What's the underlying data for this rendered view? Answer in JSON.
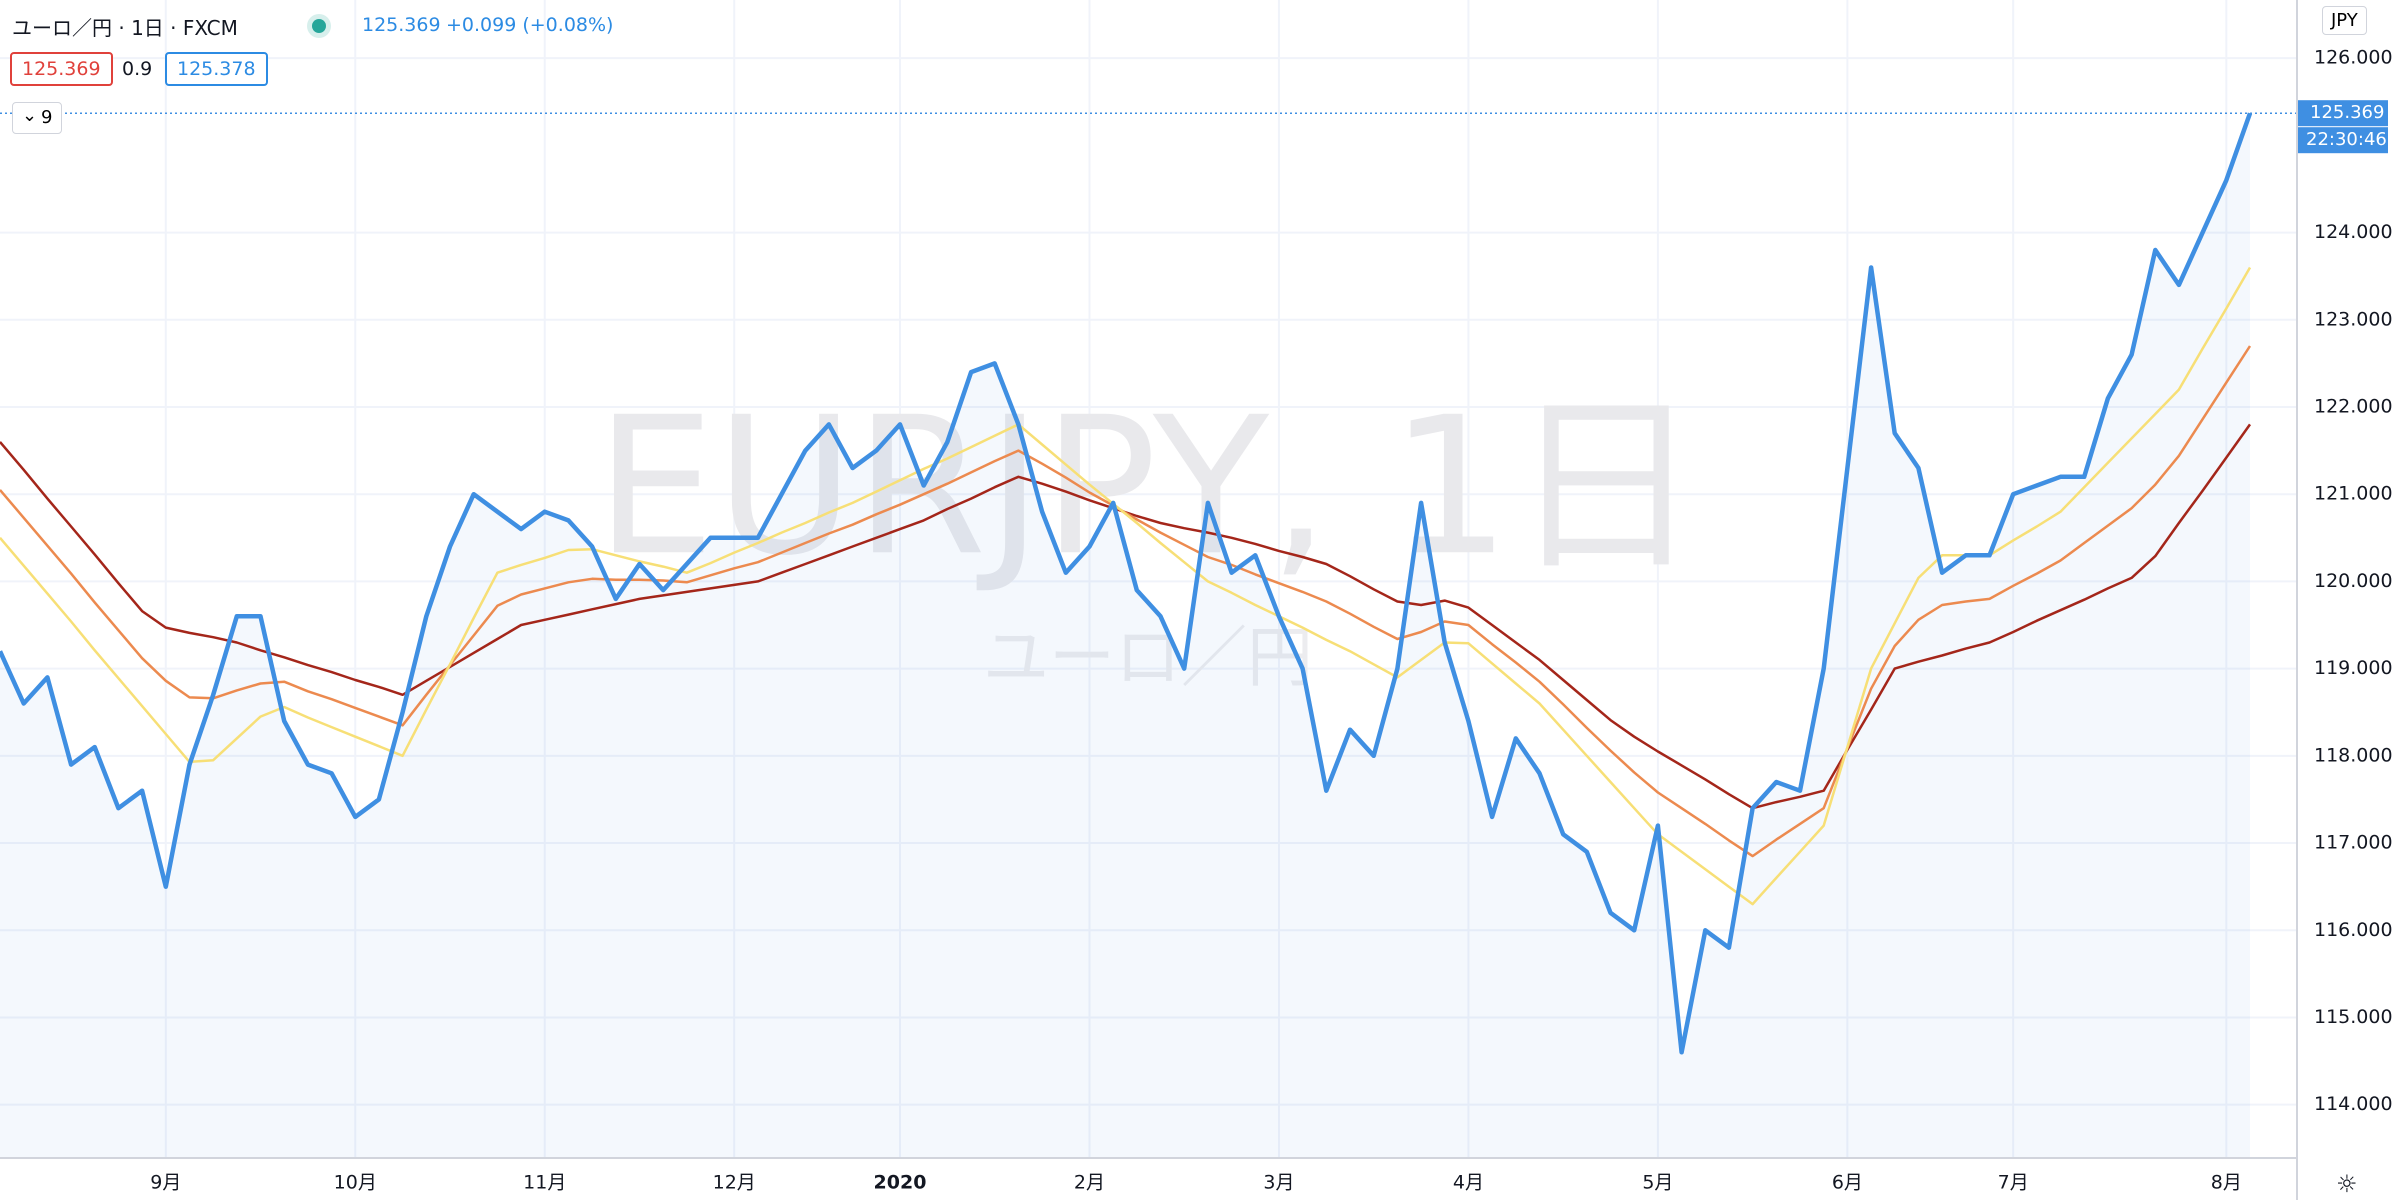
{
  "header": {
    "symbol": "ユーロ／円 · 1日 · FXCM",
    "price": "125.369",
    "change": "+0.099 (+0.08%)",
    "bid": "125.369",
    "spread": "0.9",
    "ask": "125.378",
    "indicator_length": "9"
  },
  "chart_data": {
    "type": "line",
    "watermark": "EURJPY, 1日",
    "watermark_sub": "ユーロ／円",
    "currency": "JPY",
    "countdown": "22:30:46",
    "last_price": 125.369,
    "categories": [
      null,
      null,
      null,
      null,
      null,
      null,
      null,
      "9月",
      null,
      null,
      null,
      null,
      null,
      null,
      null,
      "10月",
      null,
      null,
      null,
      null,
      null,
      null,
      null,
      "11月",
      null,
      null,
      null,
      null,
      null,
      null,
      null,
      "12月",
      null,
      null,
      null,
      null,
      null,
      null,
      "2020",
      null,
      null,
      null,
      null,
      null,
      null,
      null,
      "2月",
      null,
      null,
      null,
      null,
      null,
      null,
      null,
      "3月",
      null,
      null,
      null,
      null,
      null,
      null,
      null,
      "4月",
      null,
      null,
      null,
      null,
      null,
      null,
      null,
      "5月",
      null,
      null,
      null,
      null,
      null,
      null,
      null,
      "6月",
      null,
      null,
      null,
      null,
      null,
      null,
      "7月",
      null,
      null,
      null,
      null,
      null,
      null,
      null,
      null,
      "8月",
      null
    ],
    "ylim": [
      113.4,
      126.667
    ],
    "yticks": [
      {
        "value": 114,
        "label": "114.000"
      },
      {
        "value": 115,
        "label": "115.000"
      },
      {
        "value": 116,
        "label": "116.000"
      },
      {
        "value": 117,
        "label": "117.000"
      },
      {
        "value": 118,
        "label": "118.000"
      },
      {
        "value": 119,
        "label": "119.000"
      },
      {
        "value": 120,
        "label": "120.000"
      },
      {
        "value": 121,
        "label": "121.000"
      },
      {
        "value": 122,
        "label": "122.000"
      },
      {
        "value": 123,
        "label": "123.000"
      },
      {
        "value": 124,
        "label": "124.000"
      },
      {
        "value": 126,
        "label": "126.000"
      }
    ],
    "grid": true,
    "series": [
      {
        "color": "#a4261a",
        "values": [
          121.6,
          121.28,
          120.95,
          120.63,
          120.31,
          119.98,
          119.66,
          119.47,
          119.41,
          119.36,
          119.3,
          119.21,
          119.13,
          119.04,
          118.96,
          118.87,
          118.79,
          118.7,
          118.86,
          119.02,
          119.18,
          119.34,
          119.5,
          119.56,
          119.62,
          119.68,
          119.74,
          119.8,
          119.84,
          119.88,
          119.92,
          119.96,
          120.0,
          120.1,
          120.2,
          120.3,
          120.4,
          120.5,
          120.6,
          120.7,
          120.83,
          120.95,
          121.08,
          121.2,
          121.12,
          121.03,
          120.93,
          120.84,
          120.75,
          120.67,
          120.61,
          120.56,
          120.5,
          120.43,
          120.35,
          120.28,
          120.2,
          120.06,
          119.91,
          119.77,
          119.73,
          119.78,
          119.7,
          119.5,
          119.3,
          119.1,
          118.87,
          118.64,
          118.41,
          118.22,
          118.05,
          117.89,
          117.73,
          117.56,
          117.4,
          117.47,
          117.53,
          117.6,
          118.07,
          118.53,
          119.0,
          119.08,
          119.15,
          119.23,
          119.3,
          119.42,
          119.55,
          119.67,
          119.79,
          119.92,
          120.04,
          120.29,
          120.67,
          121.04,
          121.42,
          121.8
        ]
      },
      {
        "color": "#ec8a4f",
        "values": [
          121.05,
          120.73,
          120.41,
          120.09,
          119.76,
          119.44,
          119.12,
          118.86,
          118.67,
          118.66,
          118.75,
          118.83,
          118.85,
          118.74,
          118.65,
          118.55,
          118.45,
          118.35,
          118.7,
          119.04,
          119.38,
          119.72,
          119.85,
          119.92,
          119.99,
          120.03,
          120.02,
          120.02,
          120.01,
          119.99,
          120.07,
          120.15,
          120.22,
          120.33,
          120.44,
          120.55,
          120.65,
          120.77,
          120.88,
          121.0,
          121.12,
          121.25,
          121.38,
          121.5,
          121.35,
          121.19,
          121.02,
          120.87,
          120.71,
          120.56,
          120.42,
          120.28,
          120.19,
          120.08,
          119.98,
          119.88,
          119.77,
          119.63,
          119.48,
          119.34,
          119.42,
          119.54,
          119.5,
          119.28,
          119.07,
          118.85,
          118.59,
          118.32,
          118.06,
          117.81,
          117.58,
          117.4,
          117.22,
          117.03,
          116.85,
          117.04,
          117.22,
          117.4,
          118.09,
          118.77,
          119.26,
          119.56,
          119.73,
          119.77,
          119.8,
          119.95,
          120.09,
          120.24,
          120.44,
          120.64,
          120.84,
          121.11,
          121.44,
          121.86,
          122.28,
          122.7
        ]
      },
      {
        "color": "#f7df76",
        "values": [
          120.5,
          120.18,
          119.86,
          119.54,
          119.21,
          118.89,
          118.57,
          118.25,
          117.93,
          117.95,
          118.2,
          118.45,
          118.56,
          118.44,
          118.33,
          118.22,
          118.11,
          118.0,
          118.53,
          119.05,
          119.58,
          120.1,
          120.19,
          120.27,
          120.36,
          120.37,
          120.3,
          120.23,
          120.17,
          120.1,
          120.21,
          120.33,
          120.44,
          120.56,
          120.67,
          120.79,
          120.9,
          121.03,
          121.16,
          121.29,
          121.41,
          121.54,
          121.67,
          121.8,
          121.57,
          121.34,
          121.11,
          120.89,
          120.67,
          120.44,
          120.22,
          120.0,
          119.87,
          119.73,
          119.6,
          119.47,
          119.33,
          119.2,
          119.05,
          118.9,
          119.1,
          119.3,
          119.29,
          119.06,
          118.83,
          118.6,
          118.3,
          118.0,
          117.7,
          117.4,
          117.1,
          116.9,
          116.7,
          116.5,
          116.3,
          116.6,
          116.9,
          117.2,
          118.1,
          119.0,
          119.52,
          120.04,
          120.3,
          120.3,
          120.3,
          120.47,
          120.63,
          120.8,
          121.08,
          121.36,
          121.64,
          121.92,
          122.2,
          122.67,
          123.13,
          123.6
        ]
      },
      {
        "color": "#3f8fe2",
        "values": [
          119.2,
          118.6,
          118.9,
          117.9,
          118.1,
          117.4,
          117.6,
          116.5,
          117.9,
          118.7,
          119.6,
          119.6,
          118.4,
          117.9,
          117.8,
          117.3,
          117.5,
          118.5,
          119.6,
          120.4,
          121.0,
          120.8,
          120.6,
          120.8,
          120.7,
          120.4,
          119.8,
          120.2,
          119.9,
          120.2,
          120.5,
          120.5,
          120.5,
          121.0,
          121.5,
          121.8,
          121.3,
          121.5,
          121.8,
          121.1,
          121.6,
          122.4,
          122.5,
          121.8,
          120.8,
          120.1,
          120.4,
          120.9,
          119.9,
          119.6,
          119.0,
          120.9,
          120.1,
          120.3,
          119.6,
          119.0,
          117.6,
          118.3,
          118.0,
          119.0,
          120.9,
          119.3,
          118.4,
          117.3,
          118.2,
          117.8,
          117.1,
          116.9,
          116.2,
          116.0,
          117.2,
          114.6,
          116.0,
          115.8,
          117.4,
          117.7,
          117.6,
          119.0,
          121.3,
          123.6,
          121.7,
          121.3,
          120.1,
          120.3,
          120.3,
          121.0,
          121.1,
          121.2,
          121.2,
          122.1,
          122.6,
          123.8,
          123.4,
          124.0,
          124.6,
          125.369
        ]
      }
    ]
  }
}
